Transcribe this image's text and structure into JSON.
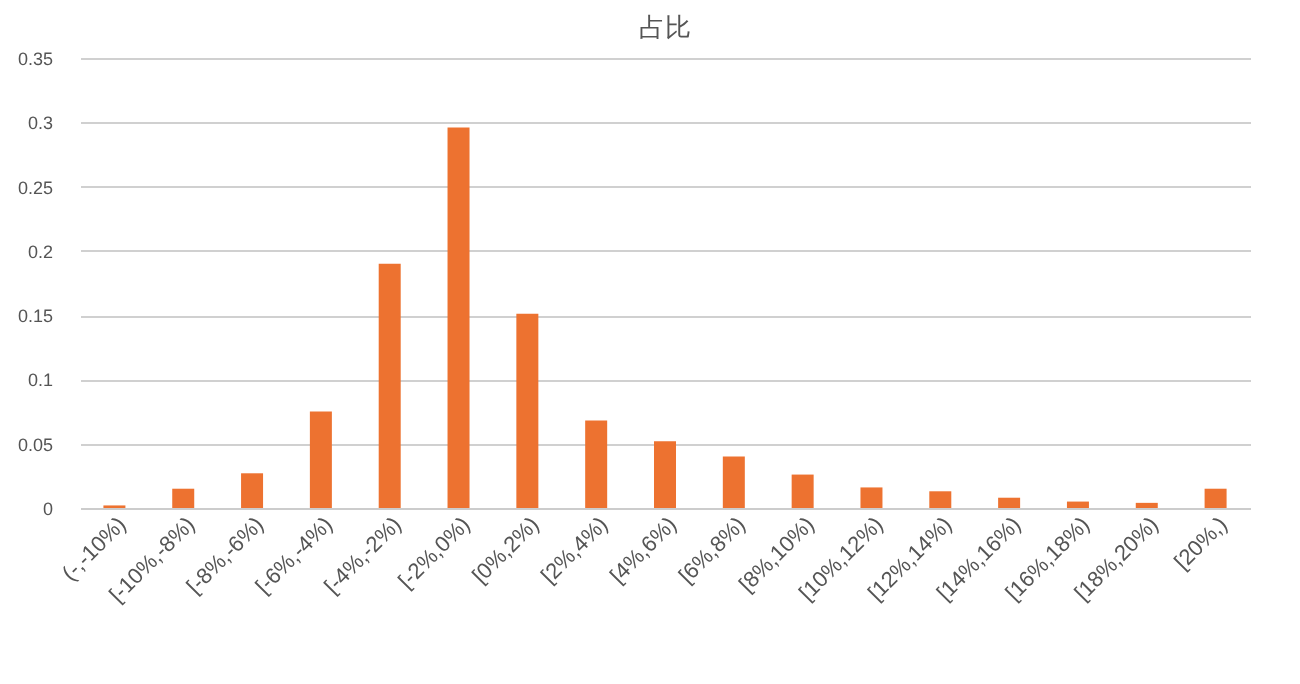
{
  "chart_data": {
    "type": "bar",
    "title": "占比",
    "categories": [
      "(-,-10%)",
      "[-10%,-8%)",
      "[-8%,-6%)",
      "[-6%,-4%)",
      "[-4%,-2%)",
      "[-2%,0%)",
      "[0%,2%)",
      "[2%,4%)",
      "[4%,6%)",
      "[6%,8%)",
      "[8%,10%)",
      "[10%,12%)",
      "[12%,14%)",
      "[14%,16%)",
      "[16%,18%)",
      "[18%,20%)",
      "[20%,)"
    ],
    "values": [
      0.002,
      0.015,
      0.027,
      0.075,
      0.19,
      0.296,
      0.151,
      0.068,
      0.052,
      0.04,
      0.026,
      0.016,
      0.013,
      0.008,
      0.005,
      0.004,
      0.015
    ],
    "color": "#ed7230",
    "ylim": [
      0,
      0.35
    ],
    "yticks": [
      0,
      0.05,
      0.1,
      0.15,
      0.2,
      0.25,
      0.3,
      0.35
    ],
    "grid": "y"
  }
}
